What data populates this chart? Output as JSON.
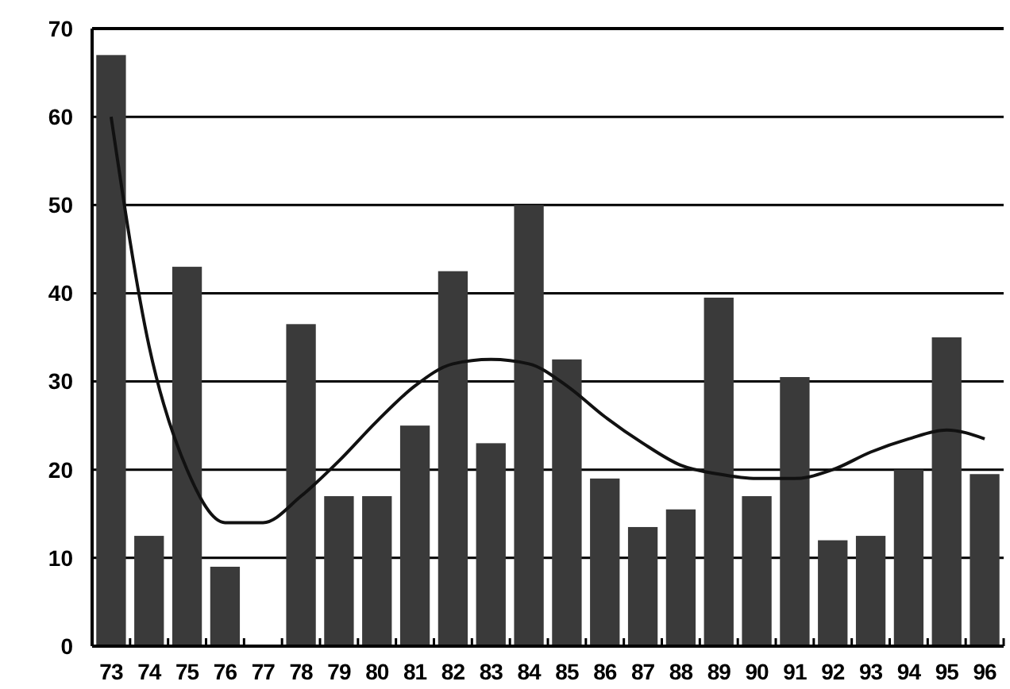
{
  "chart_data": {
    "type": "bar",
    "categories": [
      "73",
      "74",
      "75",
      "76",
      "77",
      "78",
      "79",
      "80",
      "81",
      "82",
      "83",
      "84",
      "85",
      "86",
      "87",
      "88",
      "89",
      "90",
      "91",
      "92",
      "93",
      "94",
      "95",
      "96"
    ],
    "series": [
      {
        "color": "#3a3a3a",
        "values": [
          67,
          12.5,
          43,
          9,
          null,
          36.5,
          17,
          17,
          25,
          42.5,
          23,
          50,
          32.5,
          19,
          13.5,
          15.5,
          39.5,
          17,
          30.5,
          12,
          12.5,
          20,
          35,
          19.5
        ]
      },
      {
        "type": "line",
        "color": "#111111",
        "values": [
          60,
          34,
          20,
          14,
          14,
          17,
          21,
          25.5,
          29.5,
          32,
          32.5,
          32,
          29.5,
          26,
          23,
          20.5,
          19.5,
          19,
          19,
          20,
          22,
          23.5,
          24.5,
          23.5
        ]
      }
    ],
    "ylim": [
      0,
      70
    ],
    "yticks": [
      0,
      10,
      20,
      30,
      40,
      50,
      60,
      70
    ],
    "grid": "y"
  }
}
